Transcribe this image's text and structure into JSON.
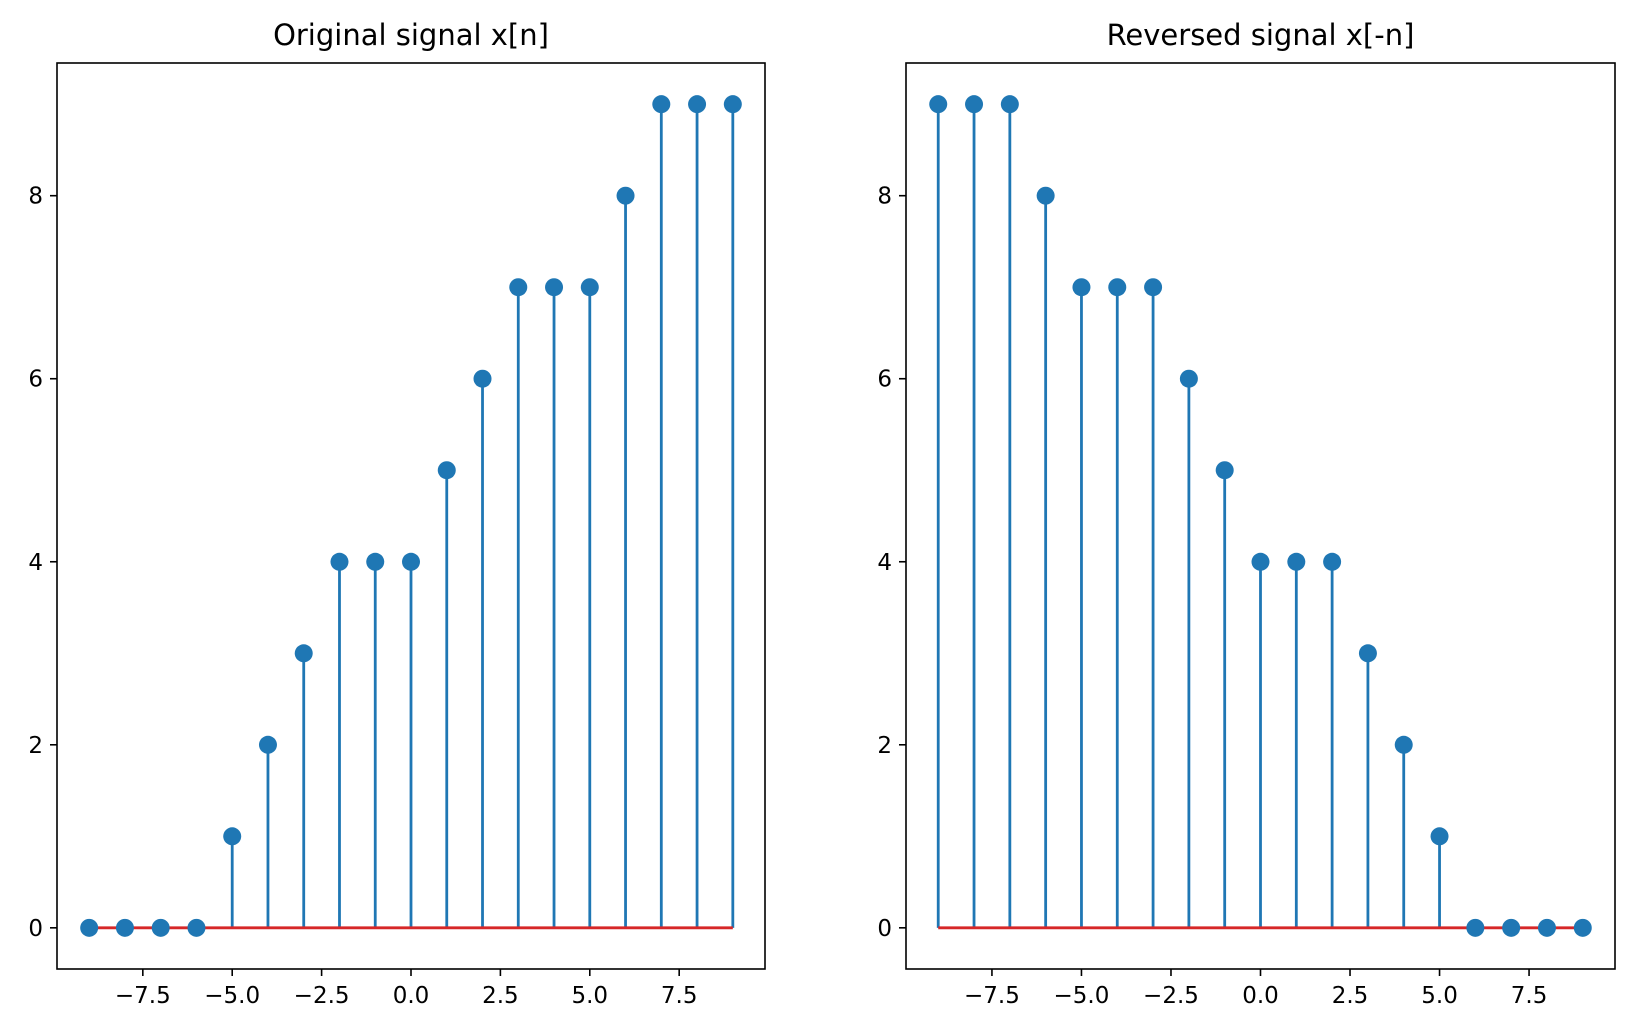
{
  "chart_data": [
    {
      "type": "stem",
      "title": "Original signal x[n]",
      "xlabel": "",
      "ylabel": "",
      "x": [
        -9,
        -8,
        -7,
        -6,
        -5,
        -4,
        -3,
        -2,
        -1,
        0,
        1,
        2,
        3,
        4,
        5,
        6,
        7,
        8,
        9
      ],
      "y": [
        0,
        0,
        0,
        0,
        1,
        2,
        3,
        4,
        4,
        4,
        5,
        6,
        7,
        7,
        7,
        8,
        9,
        9,
        9
      ],
      "xlim": [
        -9.9,
        9.9
      ],
      "ylim": [
        -0.45,
        9.45
      ],
      "xticks": [
        -7.5,
        -5.0,
        -2.5,
        0.0,
        2.5,
        5.0,
        7.5
      ],
      "xtick_labels": [
        "−7.5",
        "−5.0",
        "−2.5",
        "0.0",
        "2.5",
        "5.0",
        "7.5"
      ],
      "yticks": [
        0,
        2,
        4,
        6,
        8
      ],
      "ytick_labels": [
        "0",
        "2",
        "4",
        "6",
        "8"
      ],
      "grid": false,
      "colors": {
        "stem": "#1f77b4",
        "baseline": "#d62728"
      }
    },
    {
      "type": "stem",
      "title": "Reversed signal x[-n]",
      "xlabel": "",
      "ylabel": "",
      "x": [
        -9,
        -8,
        -7,
        -6,
        -5,
        -4,
        -3,
        -2,
        -1,
        0,
        1,
        2,
        3,
        4,
        5,
        6,
        7,
        8,
        9
      ],
      "y": [
        9,
        9,
        9,
        8,
        7,
        7,
        7,
        6,
        5,
        4,
        4,
        4,
        3,
        2,
        1,
        0,
        0,
        0,
        0
      ],
      "xlim": [
        -9.9,
        9.9
      ],
      "ylim": [
        -0.45,
        9.45
      ],
      "xticks": [
        -7.5,
        -5.0,
        -2.5,
        0.0,
        2.5,
        5.0,
        7.5
      ],
      "xtick_labels": [
        "−7.5",
        "−5.0",
        "−2.5",
        "0.0",
        "2.5",
        "5.0",
        "7.5"
      ],
      "yticks": [
        0,
        2,
        4,
        6,
        8
      ],
      "ytick_labels": [
        "0",
        "2",
        "4",
        "6",
        "8"
      ],
      "grid": false,
      "colors": {
        "stem": "#1f77b4",
        "baseline": "#d62728"
      }
    }
  ]
}
